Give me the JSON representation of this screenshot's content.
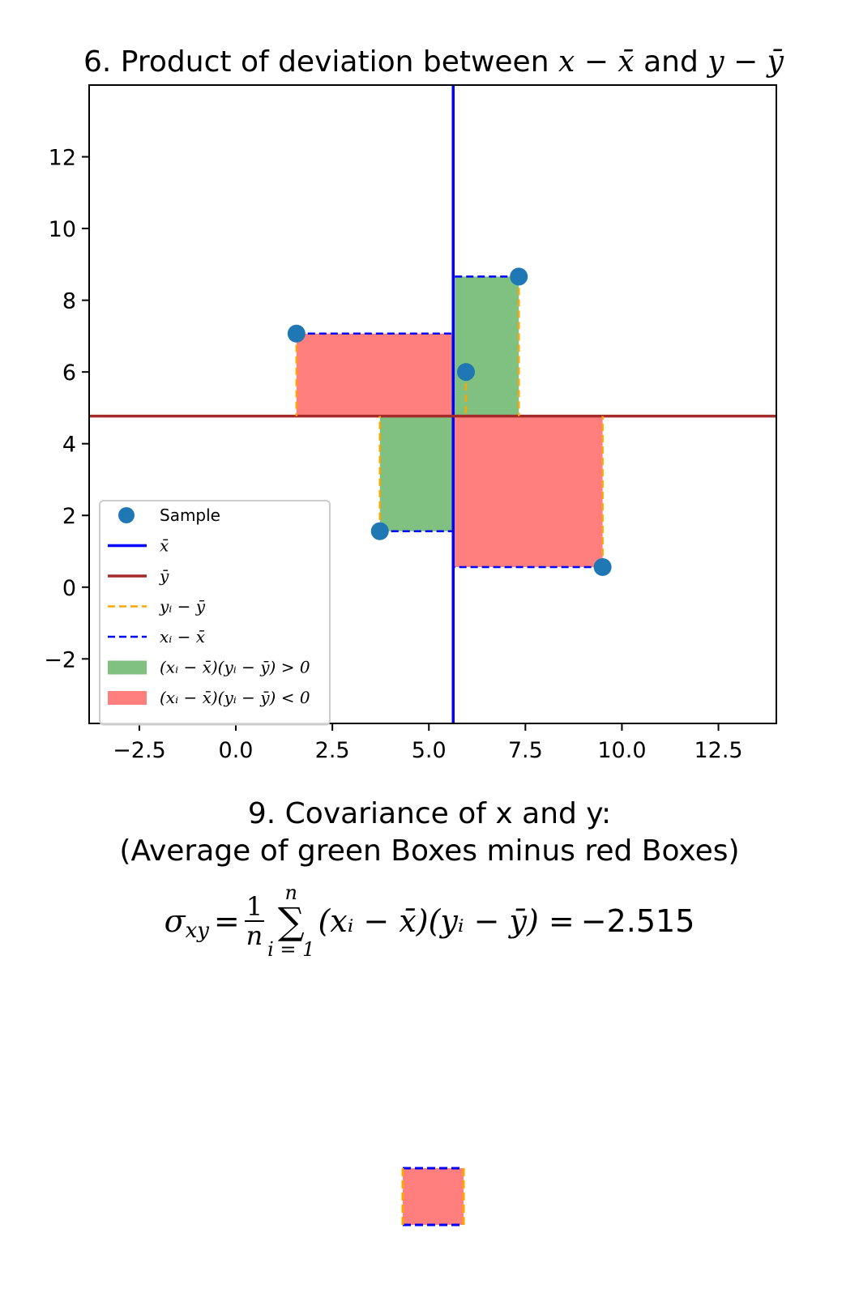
{
  "chart_data": {
    "type": "scatter",
    "title": "6. Product of deviation between x − x̄ and y − ȳ",
    "title_plain": "6. Product of deviation between ",
    "title_and": " and ",
    "title_x_expr": "x − x̄",
    "title_y_expr": "y − ȳ",
    "xlim": [
      -3.8,
      14.0
    ],
    "ylim": [
      -3.8,
      14.0
    ],
    "x_ticks": [
      -2.5,
      0.0,
      2.5,
      5.0,
      7.5,
      10.0,
      12.5
    ],
    "x_tick_labels": [
      "−2.5",
      "0.0",
      "2.5",
      "5.0",
      "7.5",
      "10.0",
      "12.5"
    ],
    "y_ticks": [
      -2,
      0,
      2,
      4,
      6,
      8,
      10,
      12
    ],
    "y_tick_labels": [
      "−2",
      "0",
      "2",
      "4",
      "6",
      "8",
      "10",
      "12"
    ],
    "grid": false,
    "legend_position": "lower-left",
    "x_mean": 5.63,
    "y_mean": 4.77,
    "points": [
      {
        "x": 1.57,
        "y": 7.07
      },
      {
        "x": 3.73,
        "y": 1.56
      },
      {
        "x": 5.96,
        "y": 6.0
      },
      {
        "x": 7.33,
        "y": 8.66
      },
      {
        "x": 9.5,
        "y": 0.56
      }
    ],
    "colors": {
      "sample": "#1f77b4",
      "x_mean": "#0000ff",
      "y_mean": "#a52a2a",
      "y_dev": "#ffa500",
      "x_dev": "#0000ff",
      "positive": "#80c080",
      "negative": "#ff7f7f"
    },
    "legend": [
      {
        "kind": "marker",
        "color_key": "sample",
        "label": "Sample"
      },
      {
        "kind": "line",
        "color_key": "x_mean",
        "label": "x̄"
      },
      {
        "kind": "line",
        "color_key": "y_mean",
        "label": "ȳ"
      },
      {
        "kind": "dashed",
        "color_key": "y_dev",
        "label": "yᵢ − ȳ"
      },
      {
        "kind": "dashed",
        "color_key": "x_dev",
        "label": "xᵢ − x̄"
      },
      {
        "kind": "patch",
        "color_key": "positive",
        "label": "(xᵢ − x̄)(yᵢ − ȳ) > 0"
      },
      {
        "kind": "patch",
        "color_key": "negative",
        "label": "(xᵢ − x̄)(yᵢ − ȳ) < 0"
      }
    ]
  },
  "covariance": {
    "title_line1": "9. Covariance of x and y:",
    "title_line2": "(Average of green Boxes minus red Boxes)",
    "sigma": "σ",
    "sigma_sub": "xy",
    "equals": "=",
    "frac_num": "1",
    "frac_den": "n",
    "sum_top": "n",
    "sum_symbol": "∑",
    "sum_bottom": "i = 1",
    "expression": "(xᵢ − x̄)(yᵢ − ȳ) =",
    "value": "−2.515"
  }
}
